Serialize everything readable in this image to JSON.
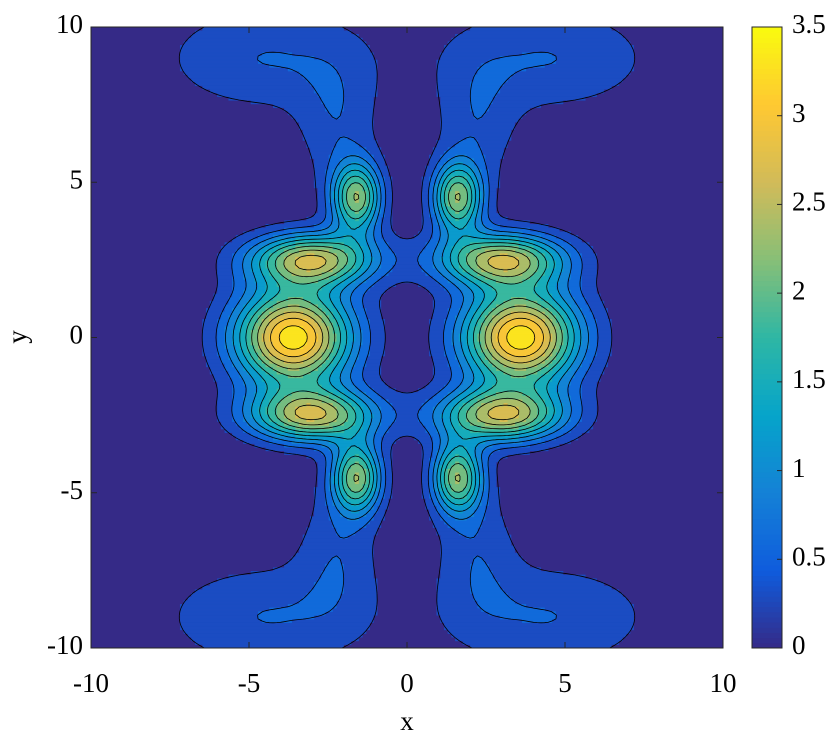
{
  "chart_data": {
    "type": "contour",
    "xlabel": "x",
    "ylabel": "y",
    "xlim": [
      -10,
      10
    ],
    "ylim": [
      -10,
      10
    ],
    "xticks": [
      -10,
      -5,
      0,
      5,
      10
    ],
    "yticks": [
      -10,
      -5,
      0,
      5,
      10
    ],
    "clim": [
      0,
      3.5
    ],
    "cticks": [
      0,
      0.5,
      1,
      1.5,
      2,
      2.5,
      3,
      3.5
    ],
    "levels": [
      0.3,
      0.6,
      0.9,
      1.2,
      1.5,
      1.8,
      2.1,
      2.4,
      2.7,
      3.0,
      3.3
    ],
    "colormap": [
      "#352a87",
      "#0f5cdd",
      "#1481d6",
      "#06a4ca",
      "#2eb7a4",
      "#87bf77",
      "#d1bb59",
      "#fec832",
      "#f9fb0e"
    ],
    "peaks": [
      {
        "x": -3.6,
        "y": 0,
        "value": 3.5,
        "sx": 1.3,
        "sy": 1.1
      },
      {
        "x": 3.6,
        "y": 0,
        "value": 3.5,
        "sx": 1.3,
        "sy": 1.1
      },
      {
        "x": -3,
        "y": 2.5,
        "value": 2.6,
        "sx": 1.4,
        "sy": 0.6
      },
      {
        "x": 3,
        "y": 2.5,
        "value": 2.6,
        "sx": 1.4,
        "sy": 0.6
      },
      {
        "x": -3,
        "y": -2.5,
        "value": 2.6,
        "sx": 1.4,
        "sy": 0.6
      },
      {
        "x": 3,
        "y": -2.5,
        "value": 2.6,
        "sx": 1.4,
        "sy": 0.6
      },
      {
        "x": -1.6,
        "y": 4.5,
        "value": 2.3,
        "sx": 0.55,
        "sy": 0.8
      },
      {
        "x": 1.6,
        "y": 4.5,
        "value": 2.3,
        "sx": 0.55,
        "sy": 0.8
      },
      {
        "x": -1.6,
        "y": -4.5,
        "value": 2.3,
        "sx": 0.55,
        "sy": 0.8
      },
      {
        "x": 1.6,
        "y": -4.5,
        "value": 2.3,
        "sx": 0.55,
        "sy": 0.8
      },
      {
        "x": -4.5,
        "y": 9,
        "value": 0.6,
        "sx": 2.3,
        "sy": 1.2
      },
      {
        "x": 4.5,
        "y": 9,
        "value": 0.6,
        "sx": 2.3,
        "sy": 1.2
      },
      {
        "x": -4.5,
        "y": -9,
        "value": 0.6,
        "sx": 2.3,
        "sy": 1.2
      },
      {
        "x": 4.5,
        "y": -9,
        "value": 0.6,
        "sx": 2.3,
        "sy": 1.2
      },
      {
        "x": -2.2,
        "y": 6.8,
        "value": 0.5,
        "sx": 0.9,
        "sy": 1.5
      },
      {
        "x": 2.2,
        "y": 6.8,
        "value": 0.5,
        "sx": 0.9,
        "sy": 1.5
      },
      {
        "x": -2.2,
        "y": -6.8,
        "value": 0.5,
        "sx": 0.9,
        "sy": 1.5
      },
      {
        "x": 2.2,
        "y": -6.8,
        "value": 0.5,
        "sx": 0.9,
        "sy": 1.5
      }
    ]
  }
}
